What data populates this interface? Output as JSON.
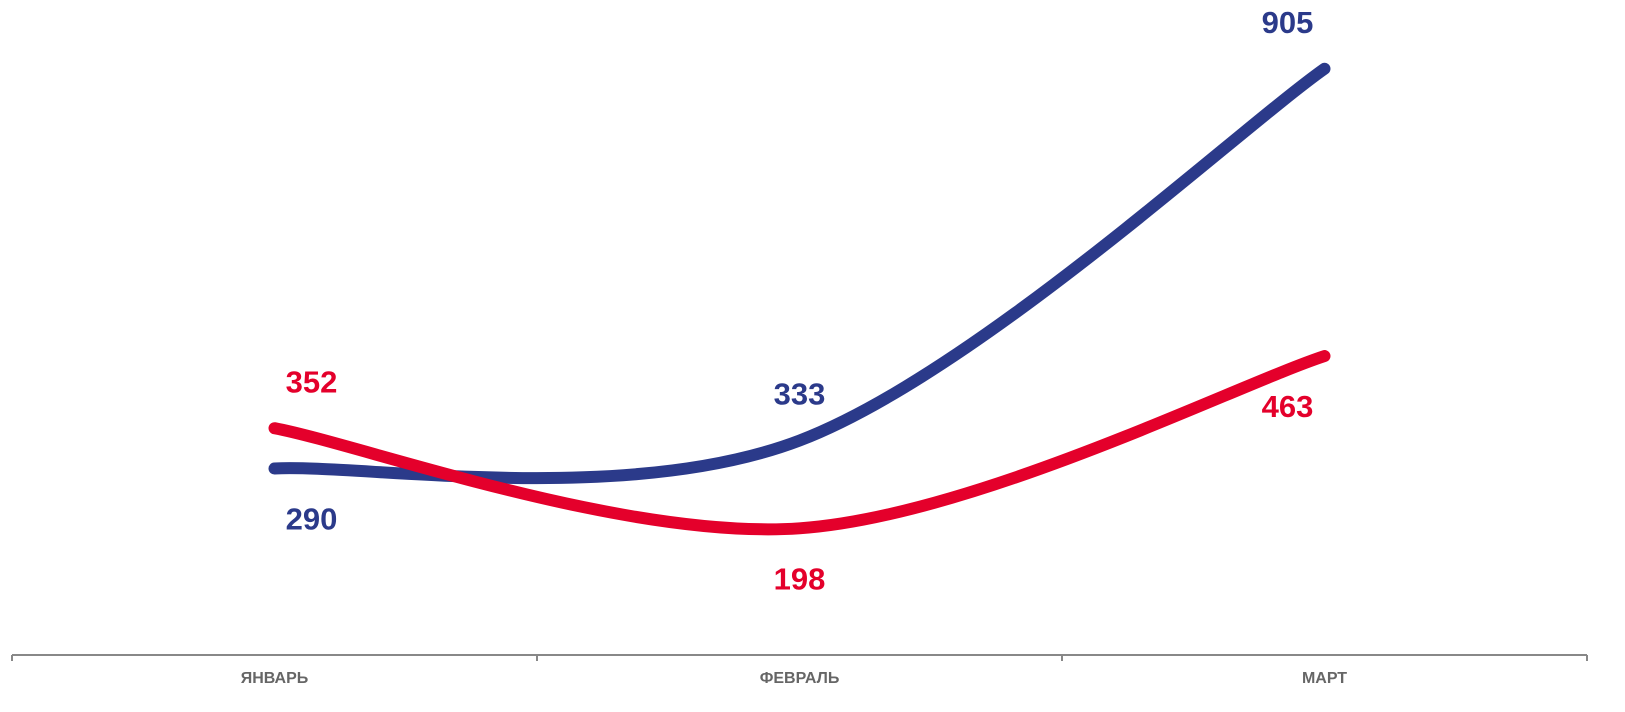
{
  "chart_data": {
    "type": "line",
    "categories": [
      "ЯНВАРЬ",
      "ФЕВРАЛЬ",
      "МАРТ"
    ],
    "series": [
      {
        "color": "#2b3a8a",
        "values": [
          290,
          333,
          905
        ]
      },
      {
        "color": "#e4002b",
        "values": [
          352,
          198,
          463
        ]
      }
    ],
    "ylim": [
      0,
      1000
    ]
  }
}
